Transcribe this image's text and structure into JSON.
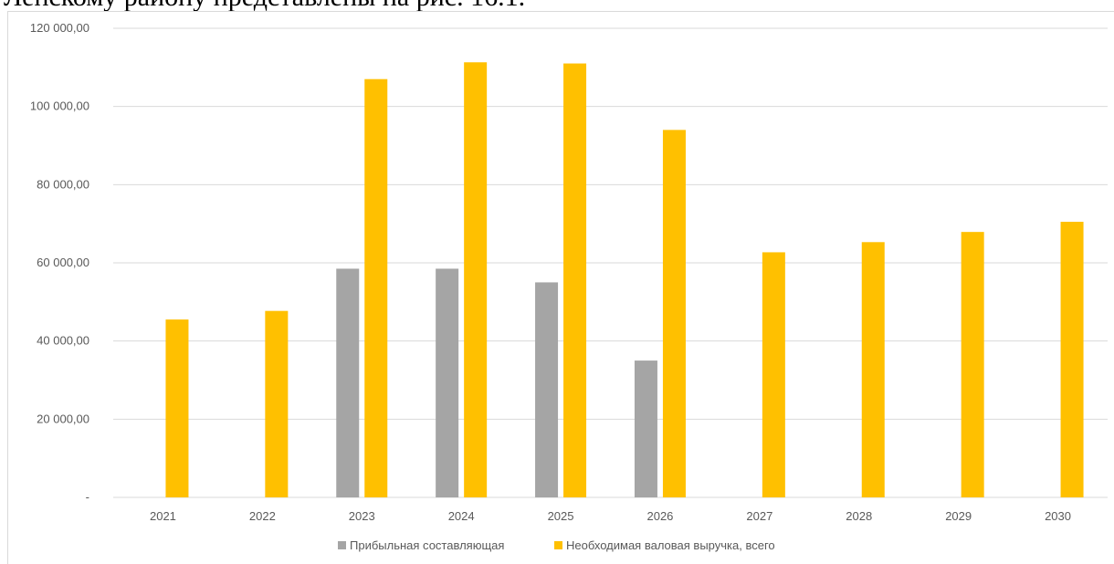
{
  "document": {
    "caption_fragment": "Ленскому району представлены на рис. 16.1."
  },
  "chart_data": {
    "type": "bar",
    "categories": [
      "2021",
      "2022",
      "2023",
      "2024",
      "2025",
      "2026",
      "2027",
      "2028",
      "2029",
      "2030"
    ],
    "series": [
      {
        "name": "Прибыльная составляющая",
        "color": "#a5a5a5",
        "values": [
          0,
          0,
          58500,
          58500,
          55000,
          35000,
          0,
          0,
          0,
          0
        ]
      },
      {
        "name": "Необходимая валовая выручка, всего",
        "color": "#ffc000",
        "values": [
          45500,
          47700,
          107000,
          111300,
          111000,
          94000,
          62700,
          65300,
          67900,
          70500
        ]
      }
    ],
    "ylim": [
      0,
      120000
    ],
    "yticks": [
      0,
      20000,
      40000,
      60000,
      80000,
      100000,
      120000
    ],
    "ytick_labels": [
      "-",
      "20 000,00",
      "40 000,00",
      "60 000,00",
      "80 000,00",
      "100 000,00",
      "120 000,00"
    ],
    "grid": true,
    "legend_position": "bottom"
  }
}
